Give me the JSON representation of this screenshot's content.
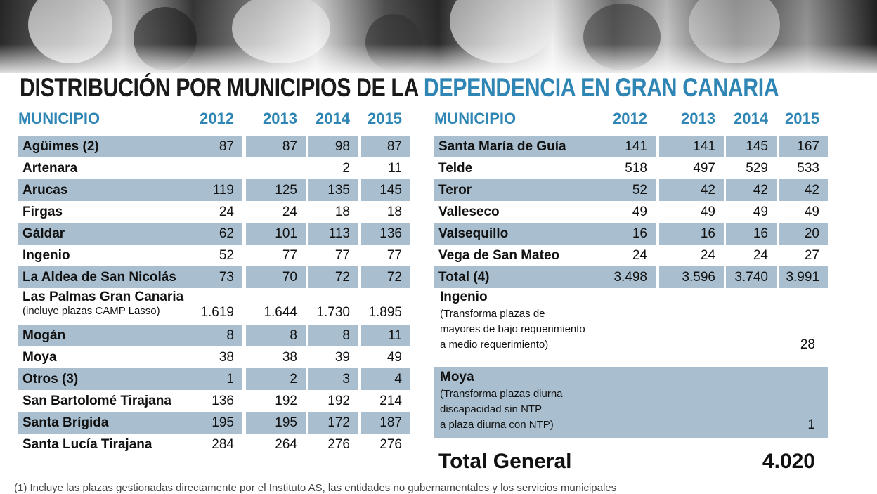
{
  "title": {
    "part1": "DISTRIBUCIÓN POR MUNICIPIOS DE LA ",
    "part2": "DEPENDENCIA EN GRAN CANARIA"
  },
  "headers": {
    "municipio": "MUNICIPIO",
    "years": [
      "2012",
      "2013",
      "2014",
      "2015"
    ]
  },
  "left_rows": [
    {
      "name": "Agüimes (2)",
      "values": [
        "87",
        "87",
        "98",
        "87"
      ],
      "shaded": true
    },
    {
      "name": "Artenara",
      "values": [
        "",
        "",
        "2",
        "11"
      ],
      "shaded": false
    },
    {
      "name": "Arucas",
      "values": [
        "119",
        "125",
        "135",
        "145"
      ],
      "shaded": true
    },
    {
      "name": "Firgas",
      "values": [
        "24",
        "24",
        "18",
        "18"
      ],
      "shaded": false
    },
    {
      "name": "Gáldar",
      "values": [
        "62",
        "101",
        "113",
        "136"
      ],
      "shaded": true
    },
    {
      "name": "Ingenio",
      "values": [
        "52",
        "77",
        "77",
        "77"
      ],
      "shaded": false
    },
    {
      "name": "La Aldea de San Nicolás",
      "values": [
        "73",
        "70",
        "72",
        "72"
      ],
      "shaded": true
    }
  ],
  "las_palmas": {
    "name": "Las Palmas Gran Canaria",
    "note": "(incluye plazas CAMP Lasso)",
    "values": [
      "1.619",
      "1.644",
      "1.730",
      "1.895"
    ]
  },
  "left_rows2": [
    {
      "name": "Mogán",
      "values": [
        "8",
        "8",
        "8",
        "11"
      ],
      "shaded": true
    },
    {
      "name": "Moya",
      "values": [
        "38",
        "38",
        "39",
        "49"
      ],
      "shaded": false
    },
    {
      "name": "Otros (3)",
      "values": [
        "1",
        "2",
        "3",
        "4"
      ],
      "shaded": true
    },
    {
      "name": "San Bartolomé Tirajana",
      "values": [
        "136",
        "192",
        "192",
        "214"
      ],
      "shaded": false
    },
    {
      "name": "Santa Brígida",
      "values": [
        "195",
        "195",
        "172",
        "187"
      ],
      "shaded": true
    },
    {
      "name": "Santa Lucía Tirajana",
      "values": [
        "284",
        "264",
        "276",
        "276"
      ],
      "shaded": false
    }
  ],
  "right_rows": [
    {
      "name": "Santa María de Guía",
      "values": [
        "141",
        "141",
        "145",
        "167"
      ],
      "shaded": true
    },
    {
      "name": "Telde",
      "values": [
        "518",
        "497",
        "529",
        "533"
      ],
      "shaded": false
    },
    {
      "name": "Teror",
      "values": [
        "52",
        "42",
        "42",
        "42"
      ],
      "shaded": true
    },
    {
      "name": "Valleseco",
      "values": [
        "49",
        "49",
        "49",
        "49"
      ],
      "shaded": false
    },
    {
      "name": "Valsequillo",
      "values": [
        "16",
        "16",
        "16",
        "20"
      ],
      "shaded": true
    },
    {
      "name": "Vega de San Mateo",
      "values": [
        "24",
        "24",
        "24",
        "27"
      ],
      "shaded": false
    },
    {
      "name": "Total (4)",
      "values": [
        "3.498",
        "3.596",
        "3.740",
        "3.991"
      ],
      "shaded": true
    }
  ],
  "ingenio_box": {
    "name": "Ingenio",
    "lines": [
      "(Transforma plazas de",
      "mayores de bajo requerimiento",
      "a medio requerimiento)"
    ],
    "value": "28"
  },
  "moya_box": {
    "name": "Moya",
    "lines": [
      "(Transforma plazas diurna",
      "discapacidad sin NTP",
      "a plaza diurna con NTP)"
    ],
    "value": "1"
  },
  "total_general": {
    "label": "Total General",
    "value": "4.020"
  },
  "footnote": "(1) Incluye las plazas gestionadas directamente por el Instituto AS, las entidades no gubernamentales y los servicios municipales"
}
